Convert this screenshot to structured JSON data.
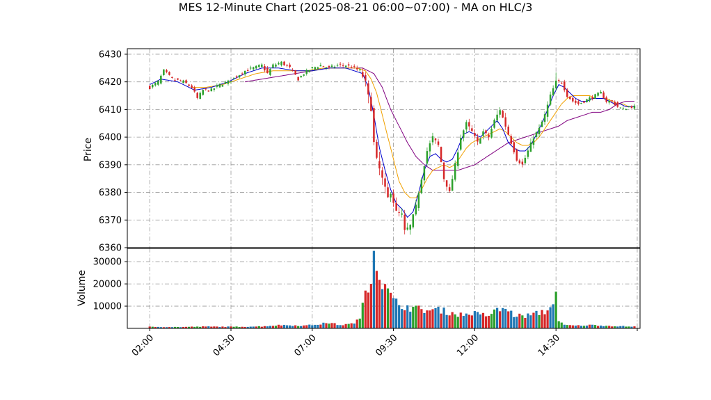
{
  "colors": {
    "up": "#2ca02c",
    "down": "#d62728",
    "ma_fast": "#0000cc",
    "ma_mid": "#f0a000",
    "ma_slow": "#800080",
    "vol_up": "#1f77b4",
    "vol_down": "#d62728",
    "vol_alt": "#2ca02c",
    "grid": "#999999"
  },
  "chart_data": {
    "type": "candlestick",
    "title": "MES 12-Minute Chart (2025-08-21 06:00~07:00) - MA on HLC/3",
    "price_panel": {
      "ylabel": "Price",
      "ylim": [
        6360,
        6432
      ],
      "yticks": [
        "6360",
        "6370",
        "6380",
        "6390",
        "6400",
        "6410",
        "6420",
        "6430"
      ],
      "grid": true
    },
    "volume_panel": {
      "ylabel": "Volume",
      "ylim": [
        0,
        36000
      ],
      "yticks": [
        "10000",
        "20000",
        "30000"
      ],
      "grid": true
    },
    "x_axis": {
      "xlim": [
        -8,
        175
      ],
      "ticks": [
        {
          "bar": 0,
          "label": "02:00"
        },
        {
          "bar": 29,
          "label": "04:30"
        },
        {
          "bar": 58,
          "label": "07:00"
        },
        {
          "bar": 87,
          "label": "09:30"
        },
        {
          "bar": 116,
          "label": "12:00"
        },
        {
          "bar": 145,
          "label": "14:30"
        },
        {
          "bar": 174,
          "label": ""
        }
      ]
    },
    "price_keypoints": [
      [
        0,
        6418
      ],
      [
        3,
        6420
      ],
      [
        5,
        6424
      ],
      [
        8,
        6421
      ],
      [
        12,
        6420
      ],
      [
        15,
        6418
      ],
      [
        17,
        6414
      ],
      [
        19,
        6417
      ],
      [
        22,
        6417
      ],
      [
        25,
        6419
      ],
      [
        28,
        6420
      ],
      [
        31,
        6422
      ],
      [
        34,
        6424
      ],
      [
        37,
        6425
      ],
      [
        40,
        6426
      ],
      [
        42,
        6423
      ],
      [
        44,
        6426
      ],
      [
        47,
        6427
      ],
      [
        50,
        6425
      ],
      [
        53,
        6421
      ],
      [
        55,
        6423
      ],
      [
        58,
        6425
      ],
      [
        61,
        6426
      ],
      [
        64,
        6425
      ],
      [
        67,
        6426
      ],
      [
        70,
        6426
      ],
      [
        73,
        6425
      ],
      [
        75,
        6424
      ],
      [
        77,
        6420
      ],
      [
        79,
        6410
      ],
      [
        80,
        6398
      ],
      [
        81,
        6392
      ],
      [
        83,
        6385
      ],
      [
        85,
        6378
      ],
      [
        86,
        6380
      ],
      [
        88,
        6373
      ],
      [
        90,
        6372
      ],
      [
        91,
        6366
      ],
      [
        93,
        6368
      ],
      [
        95,
        6375
      ],
      [
        97,
        6385
      ],
      [
        99,
        6395
      ],
      [
        101,
        6400
      ],
      [
        103,
        6397
      ],
      [
        105,
        6385
      ],
      [
        107,
        6380
      ],
      [
        109,
        6390
      ],
      [
        111,
        6400
      ],
      [
        113,
        6405
      ],
      [
        115,
        6402
      ],
      [
        117,
        6398
      ],
      [
        119,
        6402
      ],
      [
        121,
        6400
      ],
      [
        123,
        6406
      ],
      [
        125,
        6410
      ],
      [
        127,
        6404
      ],
      [
        129,
        6398
      ],
      [
        131,
        6392
      ],
      [
        133,
        6390
      ],
      [
        135,
        6395
      ],
      [
        137,
        6400
      ],
      [
        139,
        6403
      ],
      [
        141,
        6408
      ],
      [
        143,
        6415
      ],
      [
        145,
        6420
      ],
      [
        147,
        6420
      ],
      [
        149,
        6415
      ],
      [
        151,
        6413
      ],
      [
        153,
        6412
      ],
      [
        155,
        6413
      ],
      [
        157,
        6414
      ],
      [
        159,
        6415
      ],
      [
        161,
        6416
      ],
      [
        163,
        6413
      ],
      [
        165,
        6413
      ],
      [
        167,
        6411
      ],
      [
        169,
        6410
      ],
      [
        171,
        6411
      ],
      [
        173,
        6411
      ]
    ],
    "ma_fast_keypoints": [
      [
        0,
        6419
      ],
      [
        4,
        6421
      ],
      [
        10,
        6420
      ],
      [
        16,
        6417
      ],
      [
        22,
        6418
      ],
      [
        28,
        6420
      ],
      [
        34,
        6423
      ],
      [
        40,
        6425
      ],
      [
        46,
        6425
      ],
      [
        52,
        6424
      ],
      [
        58,
        6424
      ],
      [
        64,
        6425
      ],
      [
        70,
        6425
      ],
      [
        76,
        6423
      ],
      [
        78,
        6418
      ],
      [
        80,
        6408
      ],
      [
        82,
        6396
      ],
      [
        84,
        6388
      ],
      [
        86,
        6381
      ],
      [
        88,
        6376
      ],
      [
        90,
        6374
      ],
      [
        92,
        6371
      ],
      [
        94,
        6373
      ],
      [
        96,
        6380
      ],
      [
        98,
        6388
      ],
      [
        100,
        6393
      ],
      [
        102,
        6394
      ],
      [
        104,
        6392
      ],
      [
        106,
        6391
      ],
      [
        108,
        6392
      ],
      [
        110,
        6396
      ],
      [
        112,
        6401
      ],
      [
        114,
        6402
      ],
      [
        116,
        6401
      ],
      [
        118,
        6400
      ],
      [
        120,
        6402
      ],
      [
        122,
        6404
      ],
      [
        124,
        6406
      ],
      [
        126,
        6403
      ],
      [
        128,
        6398
      ],
      [
        130,
        6396
      ],
      [
        132,
        6395
      ],
      [
        134,
        6395
      ],
      [
        136,
        6397
      ],
      [
        138,
        6401
      ],
      [
        140,
        6405
      ],
      [
        142,
        6410
      ],
      [
        144,
        6415
      ],
      [
        146,
        6419
      ],
      [
        148,
        6418
      ],
      [
        150,
        6416
      ],
      [
        152,
        6414
      ],
      [
        154,
        6413
      ],
      [
        156,
        6413
      ],
      [
        158,
        6414
      ],
      [
        160,
        6414
      ],
      [
        162,
        6414
      ],
      [
        164,
        6413
      ],
      [
        166,
        6412
      ],
      [
        168,
        6412
      ],
      [
        170,
        6411
      ],
      [
        172,
        6411
      ],
      [
        173,
        6411
      ]
    ],
    "ma_mid_keypoints": [
      [
        15,
        6418
      ],
      [
        20,
        6418
      ],
      [
        26,
        6419
      ],
      [
        32,
        6421
      ],
      [
        38,
        6423
      ],
      [
        44,
        6424
      ],
      [
        50,
        6424
      ],
      [
        56,
        6424
      ],
      [
        62,
        6425
      ],
      [
        68,
        6425
      ],
      [
        74,
        6425
      ],
      [
        77,
        6424
      ],
      [
        79,
        6421
      ],
      [
        81,
        6416
      ],
      [
        83,
        6408
      ],
      [
        85,
        6400
      ],
      [
        87,
        6392
      ],
      [
        89,
        6384
      ],
      [
        91,
        6380
      ],
      [
        93,
        6378
      ],
      [
        95,
        6378
      ],
      [
        97,
        6381
      ],
      [
        99,
        6385
      ],
      [
        101,
        6388
      ],
      [
        103,
        6389
      ],
      [
        105,
        6390
      ],
      [
        107,
        6389
      ],
      [
        109,
        6390
      ],
      [
        111,
        6393
      ],
      [
        113,
        6396
      ],
      [
        115,
        6398
      ],
      [
        117,
        6399
      ],
      [
        119,
        6400
      ],
      [
        121,
        6401
      ],
      [
        123,
        6402
      ],
      [
        125,
        6403
      ],
      [
        127,
        6402
      ],
      [
        129,
        6400
      ],
      [
        131,
        6398
      ],
      [
        133,
        6397
      ],
      [
        135,
        6397
      ],
      [
        137,
        6398
      ],
      [
        139,
        6400
      ],
      [
        141,
        6403
      ],
      [
        143,
        6406
      ],
      [
        145,
        6409
      ],
      [
        147,
        6412
      ],
      [
        149,
        6414
      ],
      [
        151,
        6415
      ],
      [
        153,
        6415
      ],
      [
        155,
        6415
      ],
      [
        157,
        6415
      ],
      [
        159,
        6414
      ],
      [
        161,
        6414
      ],
      [
        163,
        6414
      ],
      [
        165,
        6413
      ],
      [
        167,
        6412
      ],
      [
        169,
        6412
      ],
      [
        171,
        6411
      ],
      [
        173,
        6411
      ]
    ],
    "ma_slow_keypoints": [
      [
        34,
        6420
      ],
      [
        40,
        6421
      ],
      [
        46,
        6422
      ],
      [
        52,
        6423
      ],
      [
        58,
        6424
      ],
      [
        64,
        6425
      ],
      [
        70,
        6425
      ],
      [
        76,
        6425
      ],
      [
        80,
        6423
      ],
      [
        83,
        6418
      ],
      [
        86,
        6410
      ],
      [
        89,
        6404
      ],
      [
        92,
        6398
      ],
      [
        95,
        6393
      ],
      [
        98,
        6390
      ],
      [
        101,
        6388
      ],
      [
        104,
        6388
      ],
      [
        107,
        6388
      ],
      [
        110,
        6388
      ],
      [
        113,
        6389
      ],
      [
        116,
        6390
      ],
      [
        119,
        6392
      ],
      [
        122,
        6394
      ],
      [
        125,
        6396
      ],
      [
        128,
        6398
      ],
      [
        131,
        6399
      ],
      [
        134,
        6400
      ],
      [
        137,
        6401
      ],
      [
        140,
        6402
      ],
      [
        143,
        6403
      ],
      [
        146,
        6404
      ],
      [
        149,
        6406
      ],
      [
        152,
        6407
      ],
      [
        155,
        6408
      ],
      [
        158,
        6409
      ],
      [
        161,
        6409
      ],
      [
        164,
        6410
      ],
      [
        167,
        6412
      ],
      [
        170,
        6413
      ],
      [
        173,
        6413
      ]
    ],
    "volume_keypoints": [
      [
        0,
        700
      ],
      [
        10,
        600
      ],
      [
        20,
        800
      ],
      [
        30,
        700
      ],
      [
        40,
        900
      ],
      [
        47,
        1500
      ],
      [
        55,
        1200
      ],
      [
        60,
        1800
      ],
      [
        64,
        2500
      ],
      [
        68,
        1500
      ],
      [
        72,
        2000
      ],
      [
        75,
        4000
      ],
      [
        76,
        12000
      ],
      [
        77,
        18000
      ],
      [
        78,
        20000
      ],
      [
        79,
        25000
      ],
      [
        80,
        35000
      ],
      [
        81,
        30000
      ],
      [
        82,
        25000
      ],
      [
        83,
        21000
      ],
      [
        84,
        18000
      ],
      [
        85,
        16000
      ],
      [
        86,
        15000
      ],
      [
        87,
        12000
      ],
      [
        89,
        11000
      ],
      [
        91,
        10000
      ],
      [
        94,
        9000
      ],
      [
        97,
        8500
      ],
      [
        100,
        8000
      ],
      [
        103,
        8500
      ],
      [
        106,
        7500
      ],
      [
        109,
        6500
      ],
      [
        112,
        6000
      ],
      [
        115,
        7000
      ],
      [
        118,
        6000
      ],
      [
        121,
        6000
      ],
      [
        123,
        7500
      ],
      [
        126,
        9000
      ],
      [
        128,
        8000
      ],
      [
        130,
        6000
      ],
      [
        133,
        5500
      ],
      [
        136,
        6000
      ],
      [
        139,
        7000
      ],
      [
        141,
        7500
      ],
      [
        143,
        9000
      ],
      [
        145,
        17000
      ],
      [
        146,
        3000
      ],
      [
        148,
        1500
      ],
      [
        152,
        1200
      ],
      [
        158,
        1500
      ],
      [
        164,
        1100
      ],
      [
        170,
        900
      ],
      [
        173,
        800
      ]
    ]
  }
}
